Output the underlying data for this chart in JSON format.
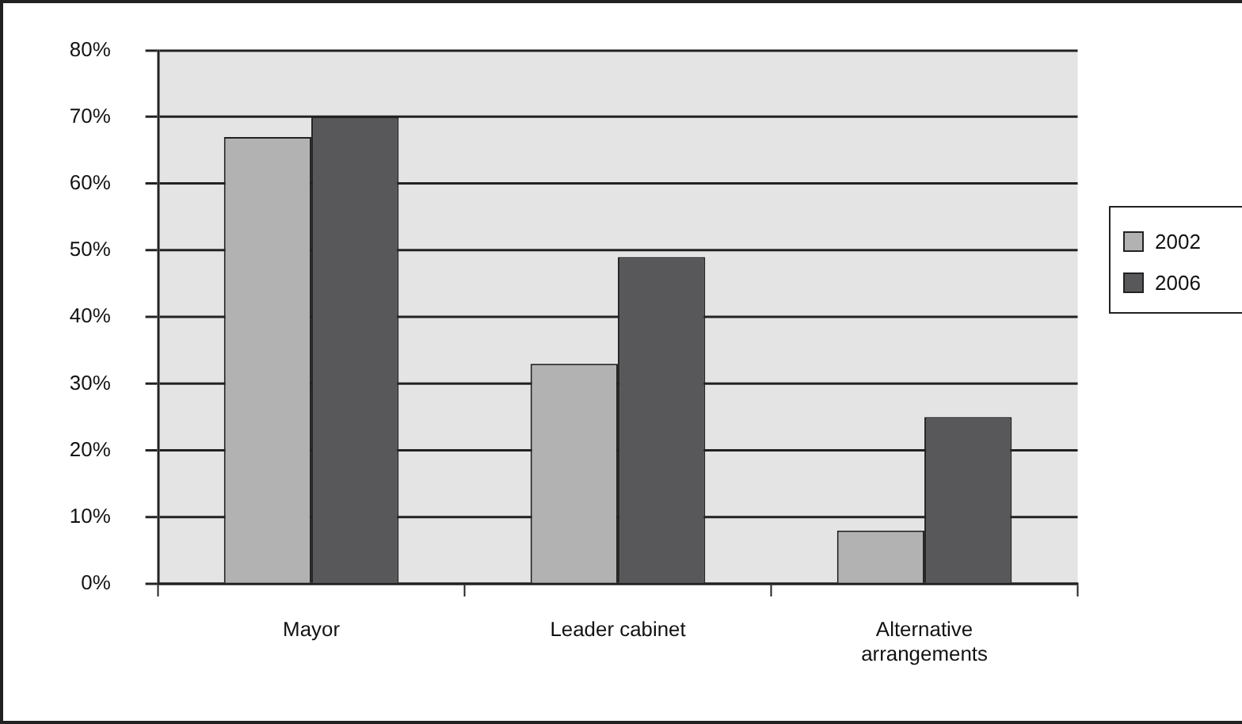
{
  "chart_data": {
    "type": "bar",
    "categories": [
      "Mayor",
      "Leader cabinet",
      "Alternative arrangements"
    ],
    "series": [
      {
        "name": "2002",
        "color": "#b2b2b2",
        "values": [
          67,
          33,
          8
        ]
      },
      {
        "name": "2006",
        "color": "#58585a",
        "values": [
          70,
          49,
          25
        ]
      }
    ],
    "ylim": [
      0,
      80
    ],
    "yticks": [
      {
        "value": 0,
        "label": "0%"
      },
      {
        "value": 10,
        "label": "10%"
      },
      {
        "value": 20,
        "label": "20%"
      },
      {
        "value": 30,
        "label": "30%"
      },
      {
        "value": 40,
        "label": "40%"
      },
      {
        "value": 50,
        "label": "50%"
      },
      {
        "value": 60,
        "label": "60%"
      },
      {
        "value": 70,
        "label": "70%"
      },
      {
        "value": 80,
        "label": "80%"
      }
    ],
    "grid": "y",
    "legend": "right"
  }
}
